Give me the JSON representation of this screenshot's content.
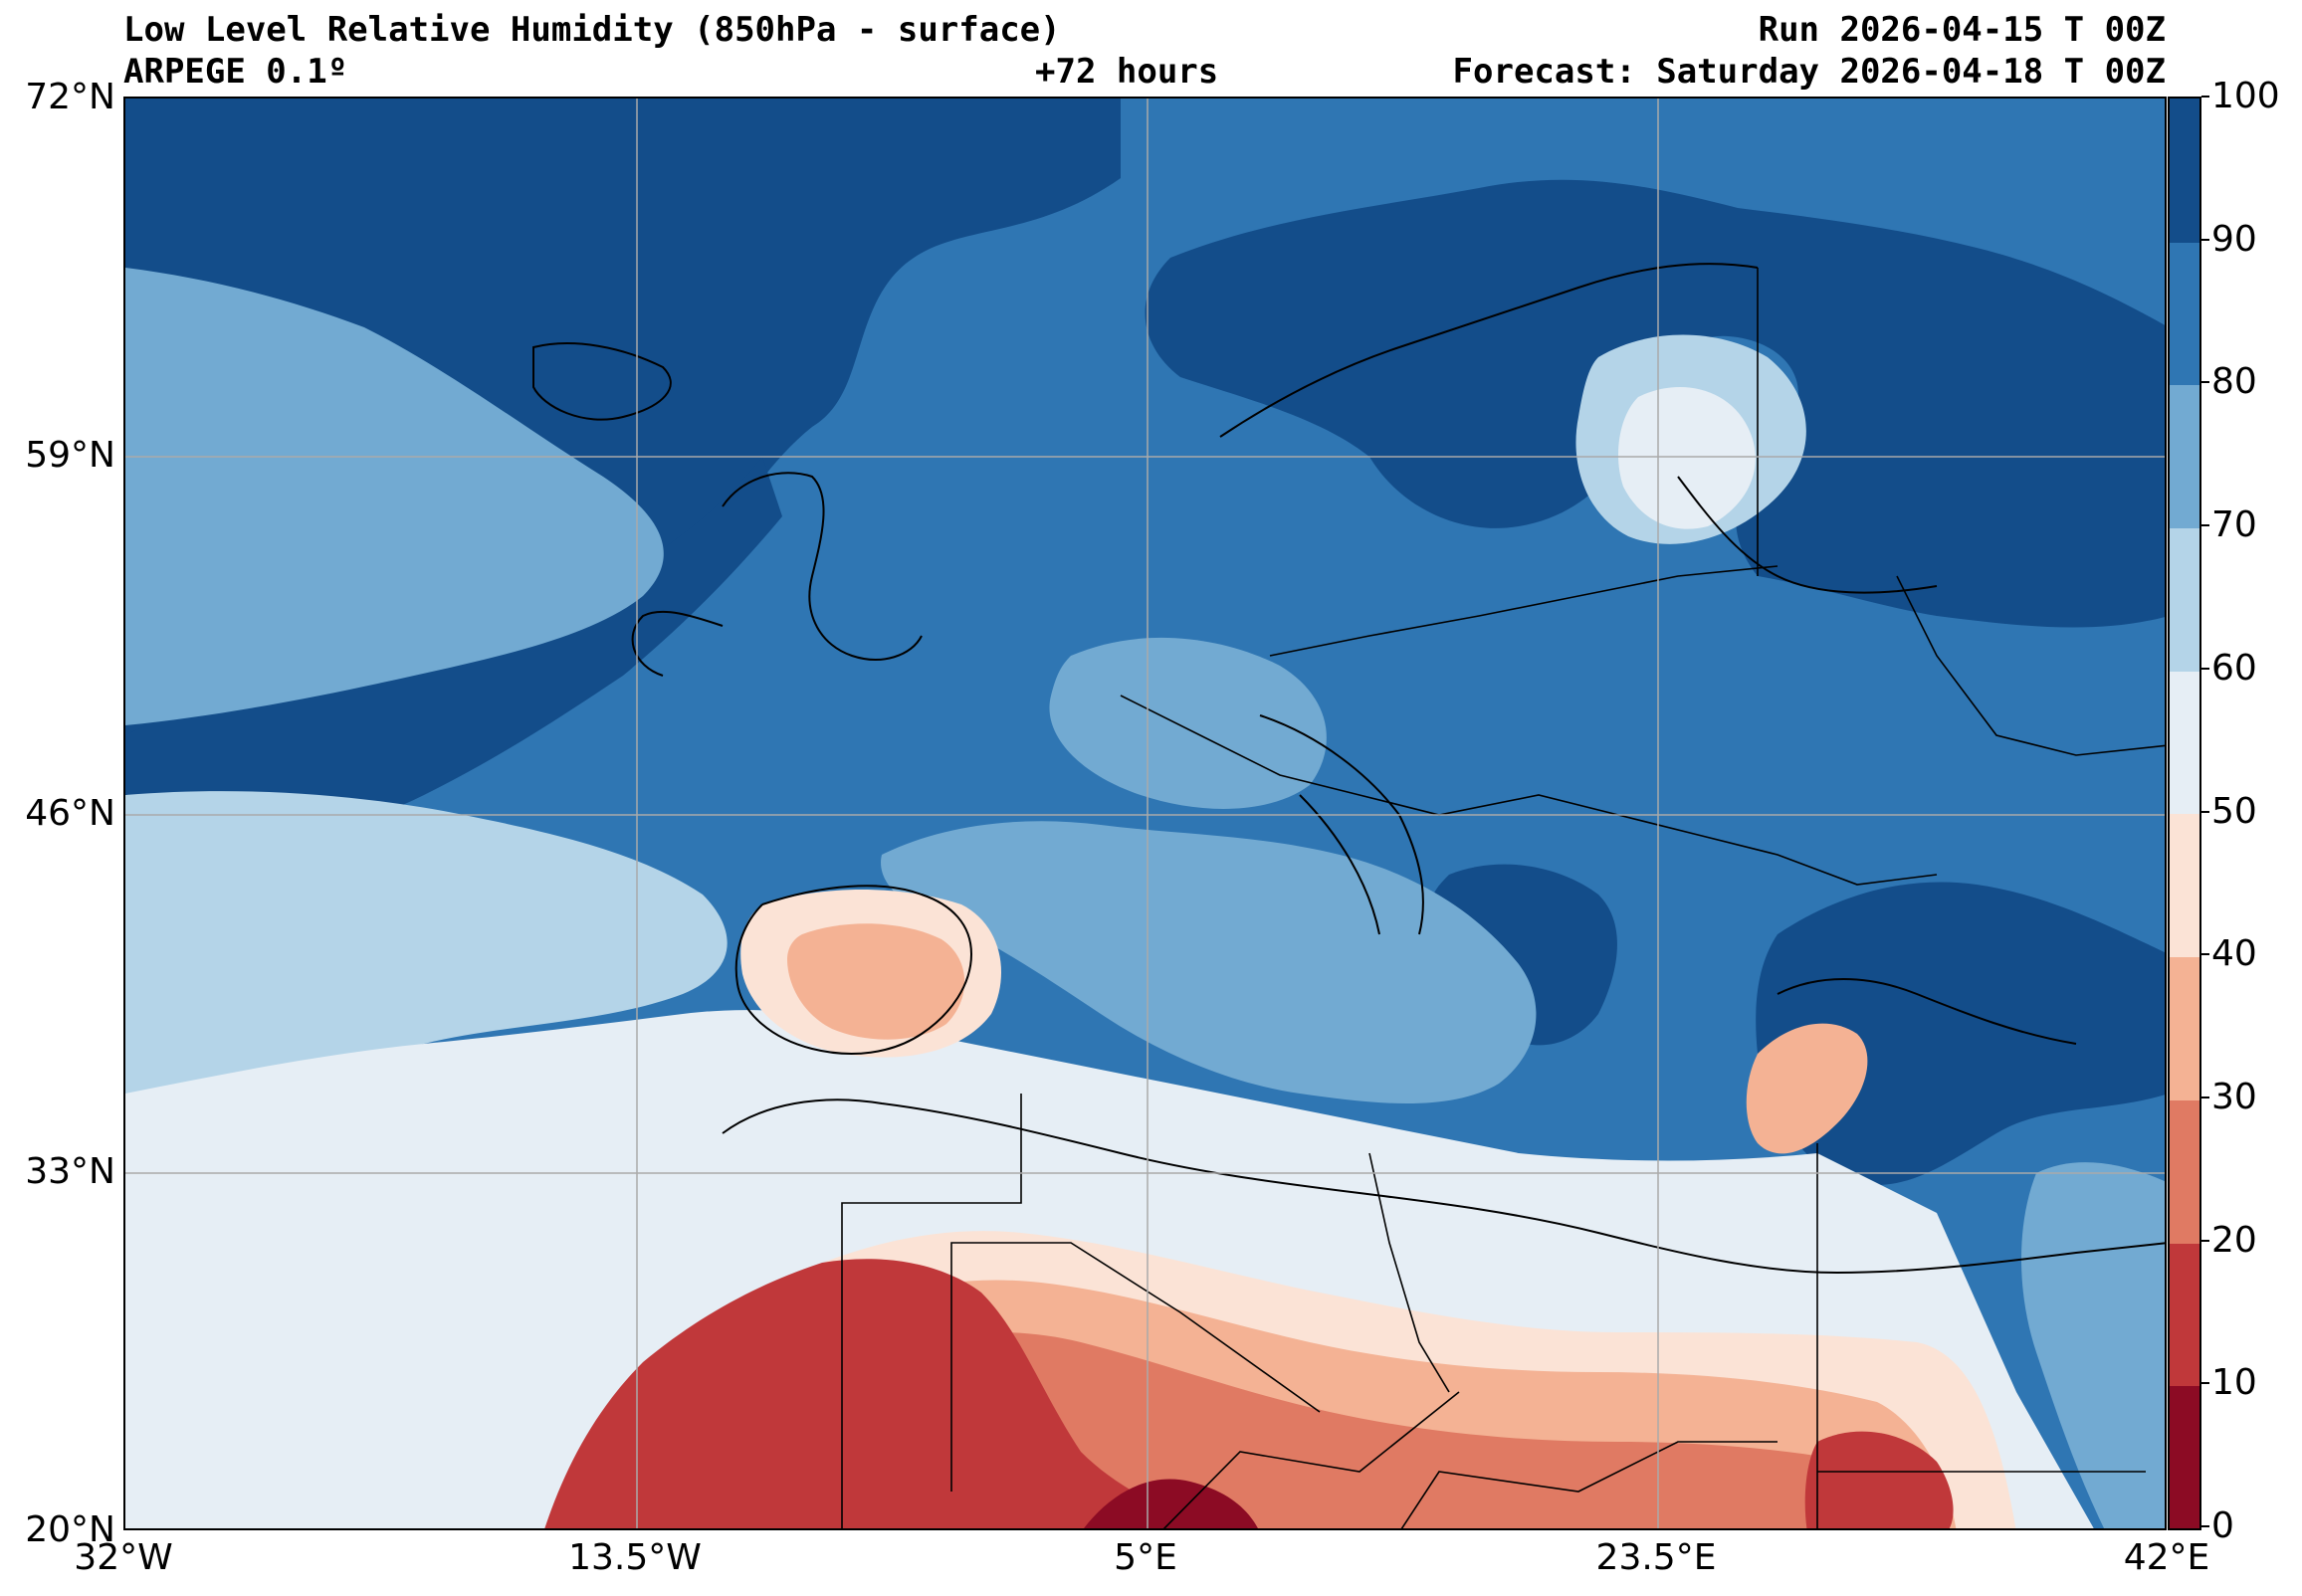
{
  "header": {
    "title": "Low Level Relative Humidity (850hPa - surface)",
    "model": "ARPEGE 0.1º",
    "run": "Run 2026-04-15 T 00Z",
    "lead": "+72 hours",
    "forecast": "Forecast: Saturday 2026-04-18 T 00Z"
  },
  "axes": {
    "lat_labels": [
      "72°N",
      "59°N",
      "46°N",
      "33°N",
      "20°N"
    ],
    "lon_labels": [
      "32°W",
      "13.5°W",
      "5°E",
      "23.5°E",
      "42°E"
    ],
    "lat_range": [
      20,
      72
    ],
    "lon_range": [
      -32,
      42
    ],
    "grid": true
  },
  "colorbar": {
    "levels": [
      0,
      10,
      20,
      30,
      40,
      50,
      60,
      70,
      80,
      90,
      100
    ],
    "labels": [
      "0",
      "10",
      "20",
      "30",
      "40",
      "50",
      "60",
      "70",
      "80",
      "90",
      "100"
    ],
    "colors": [
      "#8c0b24",
      "#c0383a",
      "#e07a63",
      "#f4b294",
      "#fbe3d6",
      "#e6eef5",
      "#b4d4e8",
      "#72aad2",
      "#2f76b3",
      "#134d8a"
    ]
  }
}
